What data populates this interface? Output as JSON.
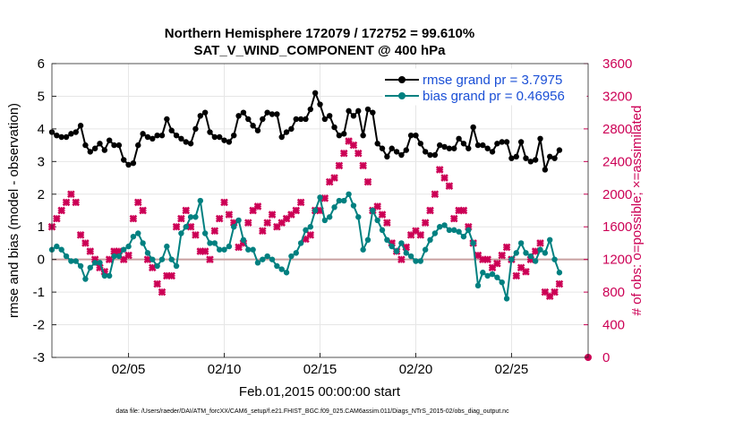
{
  "chart_data": {
    "type": "line",
    "title_line1": "Northern Hemisphere 172079 / 172752 = 99.610%",
    "title_line2": "SAT_V_WIND_COMPONENT @ 400 hPa",
    "xlabel": "Feb.01,2015 00:00:00 start",
    "ylabel": "rmse and bias (model - observation)",
    "ylabel_right": "# of obs: o=possible; ×=assimilated",
    "ylim": [
      -3,
      6
    ],
    "ylim_right": [
      0,
      3600
    ],
    "xlim": [
      1,
      29
    ],
    "yticks": [
      -3,
      -2,
      -1,
      0,
      1,
      2,
      3,
      4,
      5,
      6
    ],
    "yticks_right": [
      0,
      400,
      800,
      1200,
      1600,
      2000,
      2400,
      2800,
      3200,
      3600
    ],
    "xticks": [
      5,
      10,
      15,
      20,
      25
    ],
    "xtick_labels": [
      "02/05",
      "02/10",
      "02/15",
      "02/20",
      "02/25"
    ],
    "grid": true,
    "legend": [
      "rmse grand pr = 3.7975",
      "bias grand pr = 0.46956"
    ],
    "legend_position": "top-right",
    "footnote": "data file: /Users/raeder/DAI/ATM_forcXX/CAM6_setup/f.e21.FHIST_BGC.f09_025.CAM6assim.011/Diags_NTrS_2015-02/obs_diag_output.nc",
    "colors": {
      "rmse": "#000000",
      "bias": "#008080",
      "obs": "#cc0055",
      "zero_line": "#c8a0a0",
      "legend_text": "#1a4fd6"
    },
    "series": [
      {
        "name": "rmse",
        "x_start": 1.0,
        "x_step": 0.25,
        "values": [
          3.9,
          3.8,
          3.75,
          3.75,
          3.85,
          3.9,
          4.1,
          3.5,
          3.3,
          3.4,
          3.55,
          3.35,
          3.65,
          3.5,
          3.5,
          3.05,
          2.9,
          2.95,
          3.5,
          3.85,
          3.75,
          3.7,
          3.8,
          3.8,
          4.3,
          3.95,
          3.8,
          3.7,
          3.6,
          3.55,
          4.0,
          4.4,
          4.5,
          3.9,
          3.75,
          3.75,
          3.65,
          3.6,
          3.8,
          4.4,
          4.5,
          4.3,
          4.1,
          3.95,
          4.3,
          4.5,
          4.45,
          4.45,
          3.75,
          3.9,
          4.0,
          4.3,
          4.3,
          4.3,
          4.6,
          5.1,
          4.75,
          4.3,
          4.4,
          4.05,
          3.8,
          3.85,
          4.55,
          4.4,
          4.55,
          3.8,
          4.6,
          4.5,
          3.55,
          3.4,
          3.15,
          3.4,
          3.3,
          3.2,
          3.35,
          3.8,
          3.8,
          3.55,
          3.3,
          3.2,
          3.2,
          3.5,
          3.45,
          3.4,
          3.4,
          3.7,
          3.55,
          3.4,
          4.05,
          3.5,
          3.5,
          3.4,
          3.3,
          3.55,
          3.6,
          3.6,
          3.1,
          3.15,
          3.6,
          3.1,
          3.0,
          3.05,
          3.7,
          2.75,
          3.15,
          3.1,
          3.35
        ]
      },
      {
        "name": "bias",
        "x_start": 1.0,
        "x_step": 0.25,
        "values": [
          0.3,
          0.4,
          0.3,
          0.1,
          -0.05,
          -0.05,
          -0.2,
          -0.6,
          -0.25,
          -0.1,
          -0.1,
          -0.5,
          -0.5,
          0.1,
          0.1,
          0.3,
          0.4,
          0.7,
          0.8,
          0.5,
          0.2,
          0.0,
          -0.2,
          0.0,
          0.4,
          0.0,
          -0.2,
          0.8,
          1.0,
          1.3,
          1.3,
          1.8,
          0.8,
          0.5,
          0.5,
          0.3,
          0.3,
          0.4,
          1.0,
          1.2,
          0.6,
          0.3,
          0.3,
          -0.1,
          0.0,
          0.1,
          0.0,
          -0.2,
          -0.3,
          -0.4,
          0.1,
          0.2,
          0.5,
          0.9,
          1.0,
          1.5,
          1.9,
          1.2,
          1.3,
          1.6,
          1.8,
          1.8,
          2.0,
          1.65,
          1.3,
          0.3,
          0.6,
          1.5,
          1.2,
          0.9,
          0.6,
          0.4,
          0.25,
          0.5,
          0.2,
          0.1,
          -0.05,
          -0.05,
          0.3,
          0.6,
          0.8,
          1.0,
          1.05,
          0.9,
          0.9,
          0.85,
          0.7,
          0.9,
          0.5,
          -0.8,
          -0.4,
          -0.5,
          -0.45,
          -0.55,
          -0.7,
          -1.2,
          0.0,
          0.2,
          0.5,
          0.2,
          0.1,
          -0.05,
          0.3,
          0.2,
          0.6,
          0.0,
          -0.4
        ]
      },
      {
        "name": "assimilated",
        "x_start": 1.0,
        "x_step": 0.25,
        "values": [
          1600,
          1700,
          1800,
          1900,
          2000,
          1900,
          1500,
          1400,
          1300,
          1200,
          1100,
          1050,
          1200,
          1300,
          1300,
          1200,
          1250,
          1700,
          1900,
          1800,
          1200,
          1100,
          900,
          800,
          1000,
          1000,
          1600,
          1700,
          1800,
          1600,
          1500,
          1300,
          1300,
          1200,
          1550,
          1700,
          1900,
          1750,
          1650,
          1350,
          1400,
          1650,
          1800,
          1850,
          1550,
          1650,
          1750,
          1600,
          1650,
          1700,
          1750,
          1800,
          1900,
          1450,
          1500,
          1800,
          1800,
          1950,
          2150,
          2200,
          2350,
          2500,
          2650,
          2600,
          2500,
          2350,
          2150,
          1800,
          1850,
          1750,
          1650,
          1400,
          1300,
          1200,
          1350,
          1500,
          1550,
          1500,
          1650,
          1800,
          2000,
          2300,
          2200,
          2100,
          1700,
          1800,
          1800,
          1600,
          1400,
          1250,
          1200,
          1200,
          1100,
          1150,
          1250,
          1350,
          1200,
          1000,
          1100,
          1050,
          1200,
          1300,
          1400,
          800,
          750,
          800,
          900
        ]
      }
    ],
    "obs_possible_last": {
      "x": 29.0,
      "value": 0
    }
  }
}
